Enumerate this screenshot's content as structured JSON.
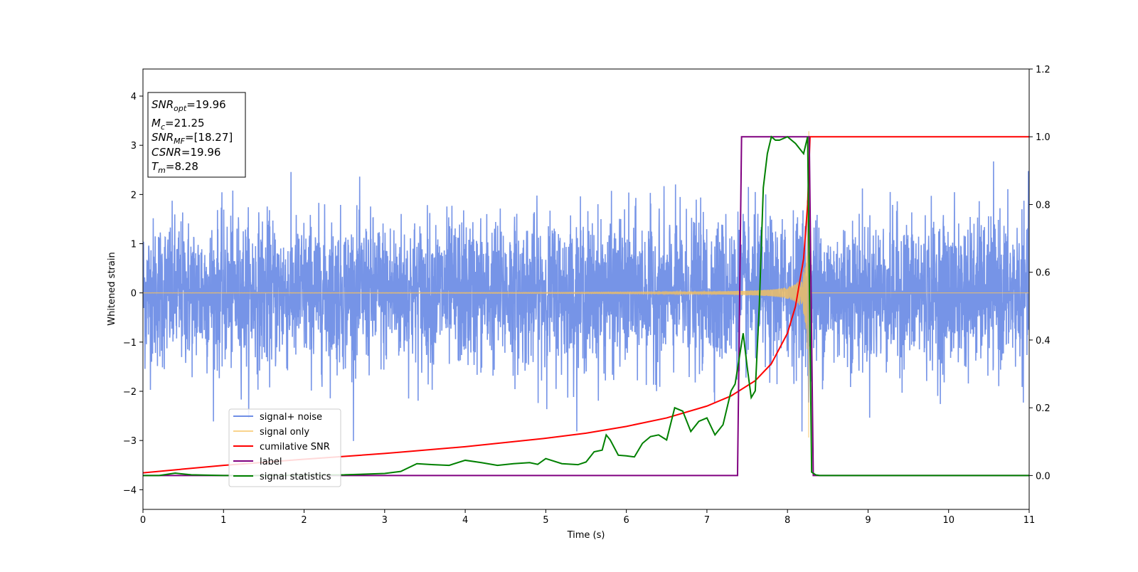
{
  "chart_data": {
    "type": "line",
    "xlabel": "Time (s)",
    "ylabel": "Whitened strain",
    "xlim": [
      0,
      11
    ],
    "ylim_left": [
      -4.4,
      4.55
    ],
    "ylim_right": [
      -0.1,
      1.2
    ],
    "x_ticks": [
      "0",
      "1",
      "2",
      "3",
      "4",
      "5",
      "6",
      "7",
      "8",
      "9",
      "10",
      "11"
    ],
    "y_ticks_left": [
      "−4",
      "−3",
      "−2",
      "−1",
      "0",
      "1",
      "2",
      "3",
      "4"
    ],
    "y_ticks_right": [
      "0.0",
      "0.2",
      "0.4",
      "0.6",
      "0.8",
      "1.0",
      "1.2"
    ],
    "annotations": {
      "snr_opt": {
        "sym": "SNR",
        "sub": "opt",
        "val": "=19.96"
      },
      "mc": {
        "sym": "M",
        "sub": "c",
        "val": "=21.25"
      },
      "snr_mf": {
        "sym": "SNR",
        "sub": "MF",
        "val": "=[18.27]"
      },
      "csnr": {
        "sym": "CSNR",
        "sub": "",
        "val": "=19.96"
      },
      "tm": {
        "sym": "T",
        "sub": "m",
        "val": "=8.28"
      }
    },
    "legend_position": "lower-left",
    "series": [
      {
        "name": "signal+ noise",
        "color": "#6f8ee6",
        "axis": "left",
        "noise_std": 0.75,
        "merger_time": 8.27
      },
      {
        "name": "signal only",
        "color": "#f6c15c",
        "axis": "left",
        "merger_time": 8.27,
        "peak_amplitude": 3.3
      },
      {
        "name": "cumilative SNR",
        "color": "#ff0000",
        "axis": "right",
        "x": [
          0,
          1,
          2,
          3,
          4,
          5,
          5.5,
          6,
          6.5,
          7,
          7.3,
          7.6,
          7.8,
          8.0,
          8.1,
          8.2,
          8.25,
          8.28,
          11
        ],
        "values": [
          0.008,
          0.03,
          0.048,
          0.065,
          0.085,
          0.11,
          0.125,
          0.145,
          0.17,
          0.205,
          0.235,
          0.28,
          0.33,
          0.42,
          0.5,
          0.64,
          0.8,
          1.0,
          1.0
        ]
      },
      {
        "name": "label",
        "color": "#800080",
        "axis": "right",
        "x": [
          0,
          7.38,
          7.43,
          8.27,
          8.32,
          11
        ],
        "values": [
          0,
          0,
          1,
          1,
          0,
          0
        ]
      },
      {
        "name": "signal statistics",
        "color": "#008000",
        "axis": "right",
        "x": [
          0,
          0.2,
          0.4,
          0.6,
          1,
          1.5,
          2,
          2.5,
          3,
          3.2,
          3.4,
          3.6,
          3.8,
          4,
          4.2,
          4.4,
          4.6,
          4.8,
          4.9,
          5,
          5.2,
          5.4,
          5.5,
          5.6,
          5.7,
          5.75,
          5.8,
          5.9,
          6,
          6.1,
          6.2,
          6.3,
          6.4,
          6.5,
          6.6,
          6.7,
          6.8,
          6.9,
          7.0,
          7.1,
          7.2,
          7.3,
          7.35,
          7.45,
          7.5,
          7.55,
          7.6,
          7.65,
          7.7,
          7.75,
          7.8,
          7.85,
          7.9,
          8.0,
          8.1,
          8.2,
          8.25,
          8.3,
          8.35,
          8.4,
          11
        ],
        "values": [
          0,
          0,
          0.007,
          0.002,
          0,
          0,
          0.001,
          0.002,
          0.006,
          0.012,
          0.035,
          0.032,
          0.03,
          0.045,
          0.038,
          0.03,
          0.035,
          0.038,
          0.033,
          0.05,
          0.035,
          0.032,
          0.04,
          0.07,
          0.075,
          0.12,
          0.105,
          0.06,
          0.058,
          0.055,
          0.095,
          0.115,
          0.12,
          0.105,
          0.2,
          0.19,
          0.13,
          0.16,
          0.17,
          0.12,
          0.15,
          0.25,
          0.27,
          0.42,
          0.32,
          0.23,
          0.25,
          0.5,
          0.85,
          0.95,
          1.0,
          0.99,
          0.99,
          1.0,
          0.98,
          0.95,
          1.0,
          0.01,
          0.002,
          0,
          0
        ]
      }
    ]
  }
}
